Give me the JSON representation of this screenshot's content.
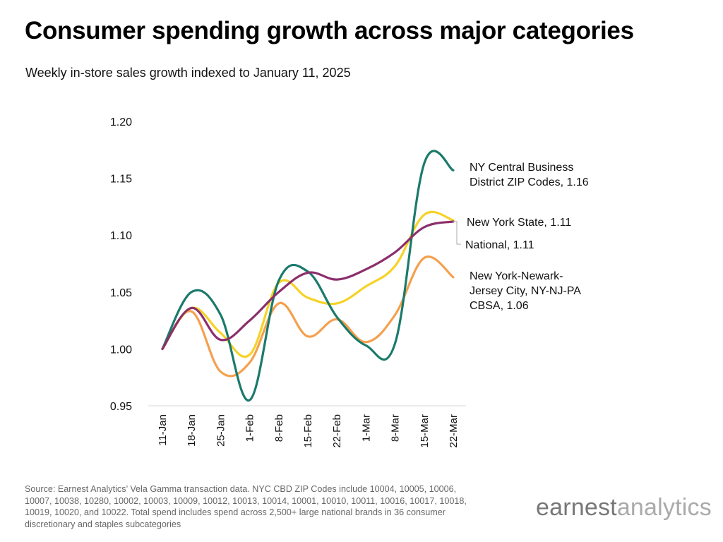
{
  "header": {
    "title": "Consumer spending growth across major categories",
    "subtitle": "Weekly in-store sales growth indexed to January 11, 2025"
  },
  "footer": {
    "source": "Source: Earnest Analytics’ Vela Gamma transaction data. NYC CBD ZIP Codes include 10004, 10005, 10006, 10007, 10038, 10280, 10002, 10003, 10009, 10012, 10013, 10014, 10001, 10010, 10011, 10016, 10017, 10018, 10019, 10020, and 10022. Total spend includes spend across 2,500+ large national brands in 36 consumer discretionary and staples subcategories",
    "logo_part1": "earnest",
    "logo_part2": "analytics"
  },
  "chart_data": {
    "type": "line",
    "title": "Consumer spending growth across major categories",
    "subtitle": "Weekly in-store sales growth indexed to January 11, 2025",
    "xlabel": "",
    "ylabel": "",
    "ylim": [
      0.95,
      1.2
    ],
    "yticks": [
      "1.20",
      "1.15",
      "1.10",
      "1.05",
      "1.00",
      "0.95"
    ],
    "grid": false,
    "legend": "direct labels at right",
    "categories": [
      "11-Jan",
      "18-Jan",
      "25-Jan",
      "1-Feb",
      "8-Feb",
      "15-Feb",
      "22-Feb",
      "1-Mar",
      "8-Mar",
      "15-Mar",
      "22-Mar"
    ],
    "series": [
      {
        "name": "NY Central Business District ZIP Codes",
        "label_lines": [
          "NY Central Business",
          "District ZIP Codes,  1.16"
        ],
        "color": "#1b7a6b",
        "values": [
          1.0,
          1.05,
          1.03,
          0.955,
          1.06,
          1.068,
          1.028,
          1.003,
          1.005,
          1.163,
          1.157
        ]
      },
      {
        "name": "New York State",
        "label_lines": [
          "New York State,  1.11"
        ],
        "color": "#f5d327",
        "values": [
          1.0,
          1.036,
          1.014,
          0.995,
          1.058,
          1.045,
          1.04,
          1.055,
          1.073,
          1.118,
          1.113
        ]
      },
      {
        "name": "National",
        "label_lines": [
          "National,  1.11"
        ],
        "color": "#8b2f6c",
        "values": [
          1.0,
          1.036,
          1.008,
          1.025,
          1.05,
          1.067,
          1.061,
          1.07,
          1.085,
          1.107,
          1.112
        ]
      },
      {
        "name": "New York-Newark-Jersey City, NY-NJ-PA CBSA",
        "label_lines": [
          "New York-Newark-",
          "Jersey City, NY-NJ-PA",
          "CBSA,  1.06"
        ],
        "color": "#f5a04e",
        "values": [
          1.0,
          1.033,
          0.98,
          0.988,
          1.04,
          1.011,
          1.026,
          1.006,
          1.03,
          1.08,
          1.063
        ]
      }
    ]
  }
}
